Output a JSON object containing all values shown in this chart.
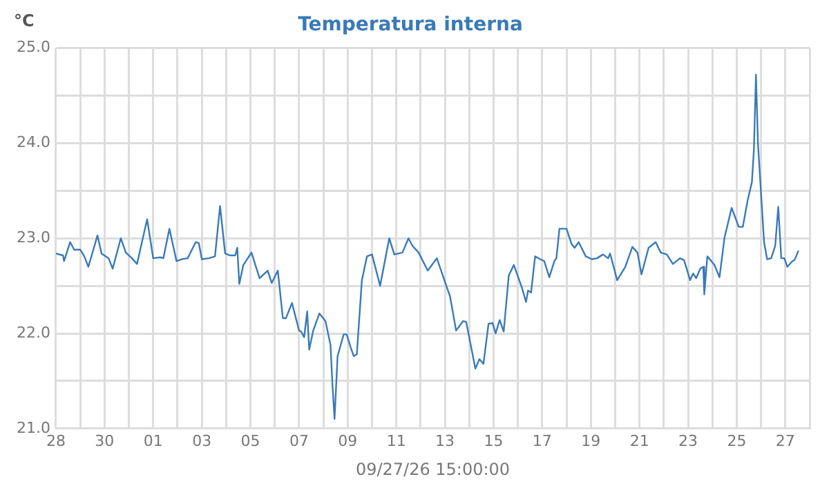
{
  "chart_data": {
    "type": "line",
    "title": "Temperatura interna",
    "ylabel": "°C",
    "xlabel": "09/27/26 15:00:00",
    "x": [
      "--08-28T00:00",
      "--08-28T07:00",
      "--08-28T08:00",
      "--08-28T14:00",
      "--08-28T18:00",
      "--08-29T00:00",
      "--08-29T04:00",
      "--08-29T08:00",
      "--08-29T17:00",
      "--08-29T21:00",
      "--08-30T04:00",
      "--08-30T08:00",
      "--08-30T16:00",
      "--08-30T21:00",
      "--08-31T03:00",
      "--08-31T08:00",
      "--08-31T18:00",
      "--09-01T00:00",
      "--09-01T07:00",
      "--09-01T10:00",
      "--09-01T16:00",
      "--09-01T23:00",
      "--09-02T04:00",
      "--09-02T10:00",
      "--09-02T18:00",
      "--09-02T21:00",
      "--09-03T00:00",
      "--09-03T07:00",
      "--09-03T13:00",
      "--09-03T18:00",
      "--09-03T23:00",
      "--09-04T04:00",
      "--09-04T09:00",
      "--09-04T11:00",
      "--09-04T13:00",
      "--09-04T17:00",
      "--09-05T01:00",
      "--09-05T09:00",
      "--09-05T17:00",
      "--09-05T21:00",
      "--09-06T03:00",
      "--09-06T08:00",
      "--09-06T11:00",
      "--09-06T17:00",
      "--09-07T00:00",
      "--09-07T02:00",
      "--09-07T05:00",
      "--09-07T08:00",
      "--09-07T10:00",
      "--09-07T14:00",
      "--09-07T20:00",
      "--09-08T02:00",
      "--09-08T07:00",
      "--09-08T09:00",
      "--09-08T11:00",
      "--09-08T14:00",
      "--09-08T20:00",
      "--09-08T23:00",
      "--09-09T03:00",
      "--09-09T06:00",
      "--09-09T09:00",
      "--09-09T14:00",
      "--09-09T19:00",
      "--09-10T00:00",
      "--09-10T08:00",
      "--09-10T17:00",
      "--09-10T22:00",
      "--09-11T06:00",
      "--09-11T12:00",
      "--09-11T16:00",
      "--09-11T22:00",
      "--09-12T07:00",
      "--09-12T16:00",
      "--09-13T02:00",
      "--09-13T05:00",
      "--09-13T11:00",
      "--09-13T18:00",
      "--09-13T21:00",
      "--09-14T06:00",
      "--09-14T10:00",
      "--09-14T14:00",
      "--09-14T19:00",
      "--09-14T23:00",
      "--09-15T02:00",
      "--09-15T06:00",
      "--09-15T10:00",
      "--09-15T15:00",
      "--09-15T20:00",
      "--09-16T04:00",
      "--09-16T08:00",
      "--09-16T10:00",
      "--09-16T13:00",
      "--09-16T17:00",
      "--09-16T22:00",
      "--09-17T02:00",
      "--09-17T07:00",
      "--09-17T12:00",
      "--09-17T14:00",
      "--09-17T17:00",
      "--09-18T00:00",
      "--09-18T05:00",
      "--09-18T08:00",
      "--09-18T12:00",
      "--09-18T19:00",
      "--09-19T01:00",
      "--09-19T06:00",
      "--09-19T12:00",
      "--09-19T17:00",
      "--09-19T19:00",
      "--09-20T02:00",
      "--09-20T10:00",
      "--09-20T17:00",
      "--09-20T22:00",
      "--09-21T02:00",
      "--09-21T09:00",
      "--09-21T16:00",
      "--09-21T21:00",
      "--09-22T03:00",
      "--09-22T09:00",
      "--09-22T16:00",
      "--09-22T20:00",
      "--09-23T02:00",
      "--09-23T05:00",
      "--09-23T08:00",
      "--09-23T12:00",
      "--09-23T15:00",
      "--09-23T16:00",
      "--09-23T19:00",
      "--09-24T02:00",
      "--09-24T07:00",
      "--09-24T12:00",
      "--09-24T19:00",
      "--09-25T02:00",
      "--09-25T06:00",
      "--09-25T11:00",
      "--09-25T15:00",
      "--09-25T17:00",
      "--09-25T19:00",
      "--09-25T21:00",
      "--09-26T03:00",
      "--09-26T06:00",
      "--09-26T10:00",
      "--09-26T14:00",
      "--09-26T17:00",
      "--09-26T20:00",
      "--09-26T23:00",
      "--09-27T02:00",
      "--09-27T07:00",
      "--09-27T09:00",
      "--09-27T13:00"
    ],
    "series": [
      {
        "color": "#3a7ab8",
        "values": [
          22.84,
          22.82,
          22.76,
          22.96,
          22.88,
          22.88,
          22.81,
          22.7,
          23.03,
          22.84,
          22.79,
          22.68,
          23.0,
          22.85,
          22.79,
          22.73,
          23.2,
          22.79,
          22.8,
          22.79,
          23.1,
          22.76,
          22.78,
          22.79,
          22.96,
          22.95,
          22.78,
          22.79,
          22.81,
          23.34,
          22.84,
          22.82,
          22.82,
          22.9,
          22.52,
          22.72,
          22.85,
          22.58,
          22.66,
          22.53,
          22.66,
          22.16,
          22.16,
          22.32,
          22.03,
          22.02,
          21.96,
          22.23,
          21.83,
          22.03,
          22.21,
          22.13,
          21.88,
          21.45,
          21.1,
          21.76,
          21.99,
          21.99,
          21.85,
          21.76,
          21.78,
          22.56,
          22.81,
          22.83,
          22.5,
          23.0,
          22.83,
          22.85,
          23.0,
          22.92,
          22.85,
          22.66,
          22.79,
          22.48,
          22.39,
          22.03,
          22.13,
          22.12,
          21.63,
          21.73,
          21.68,
          22.1,
          22.11,
          22.0,
          22.14,
          22.02,
          22.61,
          22.72,
          22.48,
          22.33,
          22.45,
          22.43,
          22.81,
          22.78,
          22.76,
          22.59,
          22.76,
          22.79,
          23.1,
          23.1,
          22.94,
          22.9,
          22.96,
          22.81,
          22.78,
          22.79,
          22.83,
          22.79,
          22.84,
          22.56,
          22.7,
          22.91,
          22.85,
          22.62,
          22.9,
          22.96,
          22.85,
          22.83,
          22.73,
          22.79,
          22.77,
          22.56,
          22.63,
          22.58,
          22.68,
          22.7,
          22.41,
          22.81,
          22.72,
          22.59,
          23.01,
          23.32,
          23.12,
          23.12,
          23.41,
          23.59,
          23.94,
          24.72,
          23.99,
          22.96,
          22.78,
          22.79,
          22.92,
          23.33,
          22.79,
          22.79,
          22.7,
          22.76,
          22.77,
          22.87
        ]
      }
    ],
    "xlim": [
      "--08-28",
      "--09-28"
    ],
    "xticks": [
      {
        "value": "--08-28",
        "label": "28"
      },
      {
        "value": "--08-29",
        "label": null
      },
      {
        "value": "--08-30",
        "label": "30"
      },
      {
        "value": "--08-31",
        "label": null
      },
      {
        "value": "--09-01",
        "label": "01"
      },
      {
        "value": "--09-02",
        "label": null
      },
      {
        "value": "--09-03",
        "label": "03"
      },
      {
        "value": "--09-04",
        "label": null
      },
      {
        "value": "--09-05",
        "label": "05"
      },
      {
        "value": "--09-06",
        "label": null
      },
      {
        "value": "--09-07",
        "label": "07"
      },
      {
        "value": "--09-08",
        "label": null
      },
      {
        "value": "--09-09",
        "label": "09"
      },
      {
        "value": "--09-10",
        "label": null
      },
      {
        "value": "--09-11",
        "label": "11"
      },
      {
        "value": "--09-12",
        "label": null
      },
      {
        "value": "--09-13",
        "label": "13"
      },
      {
        "value": "--09-14",
        "label": null
      },
      {
        "value": "--09-15",
        "label": "15"
      },
      {
        "value": "--09-16",
        "label": null
      },
      {
        "value": "--09-17",
        "label": "17"
      },
      {
        "value": "--09-18",
        "label": null
      },
      {
        "value": "--09-19",
        "label": "19"
      },
      {
        "value": "--09-20",
        "label": null
      },
      {
        "value": "--09-21",
        "label": "21"
      },
      {
        "value": "--09-22",
        "label": null
      },
      {
        "value": "--09-23",
        "label": "23"
      },
      {
        "value": "--09-24",
        "label": null
      },
      {
        "value": "--09-25",
        "label": "25"
      },
      {
        "value": "--09-26",
        "label": null
      },
      {
        "value": "--09-27",
        "label": "27"
      },
      {
        "value": "--09-28",
        "label": null
      }
    ],
    "ylim": [
      21,
      25
    ],
    "yticks": [
      {
        "value": 21,
        "label": "21.0"
      },
      {
        "value": 21.5,
        "label": null
      },
      {
        "value": 22,
        "label": "22.0"
      },
      {
        "value": 22.5,
        "label": null
      },
      {
        "value": 23,
        "label": "23.0"
      },
      {
        "value": 23.5,
        "label": null
      },
      {
        "value": 24,
        "label": "24.0"
      },
      {
        "value": 24.5,
        "label": null
      },
      {
        "value": 25,
        "label": "25.0"
      }
    ],
    "grid": true,
    "legend": false,
    "marker": "none",
    "line_style": "solid"
  }
}
